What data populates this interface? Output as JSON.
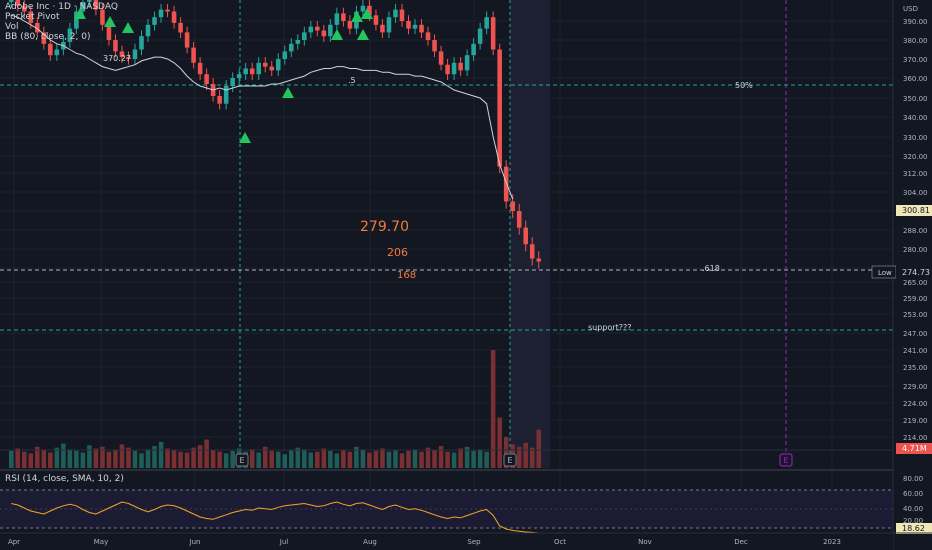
{
  "legend": {
    "symbol": "Adobe Inc · 1D · NASDAQ",
    "pocket_pivot": "Pocket Pivot",
    "vol": "Vol",
    "bb": "BB (80, close, 2, 0)",
    "rsi": "RSI (14, close, SMA, 10, 2)"
  },
  "price_axis": {
    "unit": "USD",
    "ticks": [
      "390.00",
      "380.00",
      "370.00",
      "360.00",
      "350.00",
      "340.00",
      "330.00",
      "320.00",
      "312.00",
      "304.00",
      "296.00",
      "288.00",
      "280.00",
      "272.00",
      "265.00",
      "259.00",
      "253.00",
      "247.00",
      "241.00",
      "235.00",
      "229.00",
      "224.00",
      "219.00",
      "214.00"
    ]
  },
  "time_axis": {
    "ticks": [
      "Apr",
      "May",
      "Jun",
      "Jul",
      "Aug",
      "Sep",
      "Oct",
      "Nov",
      "Dec",
      "2023"
    ]
  },
  "rsi_axis": {
    "ticks": [
      "80.00",
      "60.00",
      "40.00",
      "20.00"
    ]
  },
  "price_labels": {
    "bb_value": "300.81",
    "low_label": "Low",
    "low_value": "274.73",
    "vol_value": "4.71M",
    "rsi_value": "18.62"
  },
  "annotations": {
    "fib_50": "50%",
    "fib_5": ".5",
    "fib_618": ".618",
    "support": "support???",
    "big_price": "279.70",
    "n206": "206",
    "n168": "168",
    "low_marker": "370.27",
    "earnings": "E"
  },
  "colors": {
    "background": "#131722",
    "up": "#26a69a",
    "down": "#ef5350",
    "pivot": "#22c55e",
    "rsi_line": "#f5a623",
    "fib": "#26a69a",
    "bb_line": "#d1d4dc",
    "annotation": "#f07c3c",
    "earnings_dash": "#9c27b0"
  },
  "chart_data": [
    {
      "type": "candlestick",
      "title": "Adobe Inc · 1D · NASDAQ",
      "ylim": [
        214,
        400
      ],
      "x_range": [
        "Apr",
        "2023"
      ],
      "key_levels": [
        {
          "label": ".5",
          "value": 357
        },
        {
          "label": "50%",
          "value": 357
        },
        {
          "label": ".618",
          "value": 276
        },
        {
          "label": "support???",
          "value": 255
        }
      ],
      "last_close": 274.73,
      "bb_upper_last": 300.81,
      "series": [
        {
          "name": "close",
          "values": [
            402,
            398,
            395,
            389,
            384,
            378,
            372,
            375,
            379,
            386,
            395,
            400,
            402,
            396,
            388,
            380,
            374,
            371,
            370,
            375,
            382,
            388,
            392,
            396,
            395,
            389,
            384,
            376,
            368,
            362,
            357,
            351,
            347,
            356,
            360,
            362,
            365,
            362,
            368,
            366,
            364,
            370,
            374,
            378,
            380,
            384,
            387,
            385,
            382,
            388,
            394,
            390,
            386,
            395,
            398,
            393,
            388,
            384,
            392,
            396,
            390,
            386,
            388,
            384,
            380,
            374,
            367,
            362,
            368,
            364,
            372,
            378,
            386,
            392,
            375,
            315,
            300,
            296,
            289,
            282,
            276,
            274.73
          ]
        },
        {
          "name": "BB",
          "values": [
            393,
            392,
            390,
            388,
            386,
            383,
            380,
            378,
            377,
            375,
            373,
            372,
            370,
            368,
            366,
            365,
            364,
            365,
            366,
            367,
            369,
            370,
            371,
            371,
            370,
            368,
            365,
            361,
            358,
            356,
            355,
            354,
            355,
            354,
            355,
            356,
            356,
            356,
            356,
            356,
            357,
            357,
            358,
            359,
            360,
            361,
            363,
            364,
            365,
            365,
            366,
            366,
            365,
            365,
            364,
            364,
            364,
            363,
            363,
            362,
            362,
            362,
            361,
            361,
            360,
            359,
            358,
            356,
            354,
            353,
            352,
            351,
            350,
            347,
            330,
            316,
            308,
            301
          ]
        }
      ]
    },
    {
      "type": "bar",
      "title": "Vol",
      "last_value": "4.71M",
      "values": [
        2.1,
        2.4,
        2.0,
        1.8,
        2.6,
        2.2,
        1.9,
        2.5,
        3.0,
        2.3,
        2.1,
        1.9,
        2.8,
        2.4,
        2.6,
        2.0,
        2.2,
        2.9,
        2.5,
        2.1,
        1.8,
        2.3,
        2.7,
        3.2,
        2.4,
        2.2,
        2.0,
        1.9,
        2.5,
        2.8,
        3.5,
        2.2,
        2.0,
        1.8,
        2.1,
        2.4,
        2.0,
        2.3,
        1.9,
        2.6,
        2.1,
        2.0,
        1.7,
        2.2,
        2.5,
        2.3,
        1.9,
        2.0,
        2.4,
        2.1,
        1.8,
        2.2,
        2.0,
        2.6,
        2.3,
        1.9,
        2.1,
        2.4,
        2.0,
        2.2,
        1.8,
        2.1,
        2.3,
        2.0,
        2.5,
        2.2,
        2.7,
        2.0,
        1.9,
        2.4,
        2.6,
        2.1,
        2.3,
        2.0,
        14.5,
        6.2,
        3.8,
        2.9,
        2.6,
        3.1,
        2.5,
        4.71
      ]
    },
    {
      "type": "line",
      "title": "RSI (14, close, SMA, 10, 2)",
      "ylim": [
        0,
        100
      ],
      "last_value": 18.62,
      "values": [
        58,
        56,
        52,
        48,
        46,
        44,
        48,
        52,
        55,
        57,
        55,
        50,
        46,
        44,
        48,
        52,
        56,
        60,
        58,
        54,
        50,
        47,
        50,
        54,
        56,
        55,
        52,
        48,
        44,
        40,
        38,
        37,
        40,
        43,
        46,
        48,
        50,
        49,
        52,
        51,
        50,
        53,
        55,
        56,
        57,
        58,
        56,
        54,
        55,
        58,
        60,
        57,
        55,
        58,
        59,
        56,
        53,
        50,
        54,
        56,
        53,
        50,
        51,
        49,
        46,
        43,
        40,
        38,
        40,
        39,
        42,
        45,
        48,
        50,
        42,
        28,
        24,
        22,
        21,
        20,
        19.5,
        18.62
      ]
    }
  ]
}
